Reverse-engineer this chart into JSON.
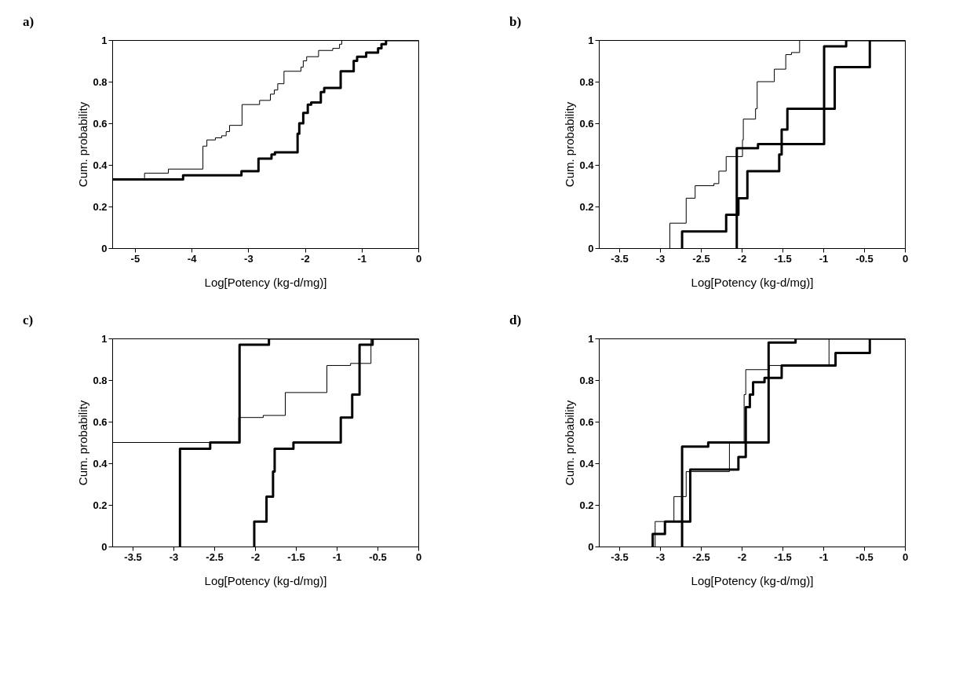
{
  "chart_data": [
    {
      "type": "step",
      "title": "a)",
      "xlabel": "Log[Potency (kg-d/mg)]",
      "ylabel": "Cum. probability",
      "xlim": [
        -5.4,
        0
      ],
      "xticks": [
        -5,
        -4,
        -3,
        -2,
        -1,
        0
      ],
      "ylim": [
        0,
        1
      ],
      "yticks": [
        0,
        0.2,
        0.4,
        0.6,
        0.8,
        1
      ],
      "grid": false,
      "series": [
        {
          "color": "#000000",
          "x": [
            -5.4,
            -4.83,
            -4.41,
            -3.8,
            -3.73,
            -3.58,
            -3.47,
            -3.39,
            -3.33,
            -3.11,
            -2.8,
            -2.61,
            -2.54,
            -2.48,
            -2.37,
            -2.07,
            -2.03,
            -1.97,
            -1.76,
            -1.51,
            -1.39,
            -1.35,
            0
          ],
          "values": [
            0.33,
            0.36,
            0.38,
            0.49,
            0.52,
            0.53,
            0.54,
            0.56,
            0.59,
            0.69,
            0.71,
            0.74,
            0.76,
            0.79,
            0.85,
            0.87,
            0.9,
            0.92,
            0.95,
            0.96,
            0.98,
            1,
            1
          ]
        },
        {
          "color": "#000000",
          "x": [
            -5.4,
            -4.15,
            -3.12,
            -2.82,
            -2.59,
            -2.53,
            -2.13,
            -2.1,
            -2.03,
            -1.95,
            -1.89,
            -1.72,
            -1.66,
            -1.37,
            -1.14,
            -1.08,
            -0.92,
            -0.71,
            -0.65,
            -0.57,
            0
          ],
          "values": [
            0.33,
            0.35,
            0.37,
            0.43,
            0.45,
            0.46,
            0.55,
            0.6,
            0.65,
            0.69,
            0.7,
            0.75,
            0.77,
            0.85,
            0.9,
            0.92,
            0.94,
            0.96,
            0.98,
            1,
            1
          ]
        }
      ]
    },
    {
      "type": "step",
      "title": "b)",
      "xlabel": "Log[Potency (kg-d/mg)]",
      "ylabel": "Cum. probability",
      "xlim": [
        -3.75,
        0
      ],
      "xticks": [
        -3.5,
        -3,
        -2.5,
        -2,
        -1.5,
        -1,
        -0.5,
        0
      ],
      "ylim": [
        0,
        1
      ],
      "yticks": [
        0,
        0.2,
        0.4,
        0.6,
        0.8,
        1
      ],
      "grid": false,
      "series": [
        {
          "color": "#000000",
          "x": [
            -2.88,
            -2.88,
            -2.68,
            -2.57,
            -2.34,
            -2.28,
            -2.19,
            -1.99,
            -1.98,
            -1.83,
            -1.81,
            -1.6,
            -1.46,
            -1.39,
            -1.29,
            0
          ],
          "values": [
            0,
            0.12,
            0.24,
            0.3,
            0.31,
            0.37,
            0.44,
            0.52,
            0.62,
            0.67,
            0.8,
            0.86,
            0.93,
            0.94,
            1,
            1
          ]
        },
        {
          "color": "#000000",
          "x": [
            -2.06,
            -2.06,
            -1.8,
            -0.99,
            -0.72,
            0
          ],
          "values": [
            0,
            0.48,
            0.5,
            0.97,
            1,
            1
          ]
        },
        {
          "color": "#000000",
          "x": [
            -2.73,
            -2.73,
            -2.19,
            -2.04,
            -1.93,
            -1.54,
            -1.51,
            -1.44,
            -0.86,
            -0.43,
            0
          ],
          "values": [
            0,
            0.08,
            0.16,
            0.24,
            0.37,
            0.45,
            0.57,
            0.67,
            0.87,
            1,
            1
          ]
        }
      ]
    },
    {
      "type": "step",
      "title": "c)",
      "xlabel": "Log[Potency (kg-d/mg)]",
      "ylabel": "Cum. probability",
      "xlim": [
        -3.75,
        0
      ],
      "xticks": [
        -3.5,
        -3,
        -2.5,
        -2,
        -1.5,
        -1,
        -0.5,
        0
      ],
      "ylim": [
        0,
        1
      ],
      "yticks": [
        0,
        0.2,
        0.4,
        0.6,
        0.8,
        1
      ],
      "grid": false,
      "series": [
        {
          "color": "#000000",
          "x": [
            -3.75,
            -2.2,
            -1.9,
            -1.63,
            -1.12,
            -0.83,
            -0.58,
            0
          ],
          "values": [
            0.5,
            0.62,
            0.63,
            0.74,
            0.87,
            0.88,
            1,
            1
          ]
        },
        {
          "color": "#000000",
          "x": [
            -2.92,
            -2.92,
            -2.55,
            -2.19,
            -1.83,
            0
          ],
          "values": [
            0,
            0.47,
            0.5,
            0.97,
            1,
            1
          ]
        },
        {
          "color": "#000000",
          "x": [
            -2.01,
            -2.01,
            -1.86,
            -1.78,
            -1.76,
            -1.53,
            -0.95,
            -0.81,
            -0.72,
            -0.56,
            0
          ],
          "values": [
            0,
            0.12,
            0.24,
            0.36,
            0.47,
            0.5,
            0.62,
            0.73,
            0.97,
            1,
            1
          ]
        }
      ]
    },
    {
      "type": "step",
      "title": "d)",
      "xlabel": "Log[Potency (kg-d/mg)]",
      "ylabel": "Cum. probability",
      "xlim": [
        -3.75,
        0
      ],
      "xticks": [
        -3.5,
        -3,
        -2.5,
        -2,
        -1.5,
        -1,
        -0.5,
        0
      ],
      "ylim": [
        0,
        1
      ],
      "yticks": [
        0,
        0.2,
        0.4,
        0.6,
        0.8,
        1
      ],
      "grid": false,
      "series": [
        {
          "color": "#000000",
          "x": [
            -3.06,
            -3.06,
            -2.83,
            -2.68,
            -2.15,
            -1.97,
            -1.95,
            -1.66,
            -0.93,
            0
          ],
          "values": [
            0,
            0.12,
            0.24,
            0.36,
            0.5,
            0.73,
            0.85,
            0.87,
            1,
            1
          ]
        },
        {
          "color": "#000000",
          "x": [
            -2.73,
            -2.73,
            -2.41,
            -1.67,
            -1.34,
            0
          ],
          "values": [
            0,
            0.48,
            0.5,
            0.98,
            1,
            1
          ]
        },
        {
          "color": "#000000",
          "x": [
            -3.09,
            -3.09,
            -2.94,
            -2.63,
            -2.04,
            -1.95,
            -1.9,
            -1.86,
            -1.72,
            -1.51,
            -0.85,
            -0.43,
            0
          ],
          "values": [
            0,
            0.06,
            0.12,
            0.37,
            0.43,
            0.67,
            0.73,
            0.79,
            0.81,
            0.87,
            0.93,
            1,
            1
          ]
        }
      ]
    }
  ]
}
